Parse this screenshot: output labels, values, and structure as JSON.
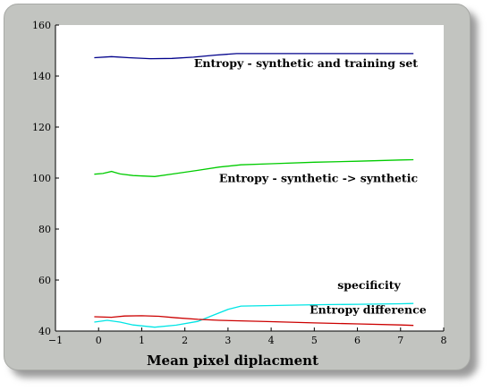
{
  "chart_data": {
    "type": "line",
    "title": "",
    "xlabel": "Mean pixel diplacment",
    "ylabel": "",
    "xlim": [
      -1,
      8
    ],
    "ylim": [
      40,
      160
    ],
    "xticks": [
      -1,
      0,
      1,
      2,
      3,
      4,
      5,
      6,
      7,
      8
    ],
    "yticks": [
      40,
      60,
      80,
      100,
      120,
      140,
      160
    ],
    "grid": false,
    "series": [
      {
        "name": "Entropy - synthetic and training set",
        "color": "#00008b",
        "x": [
          -0.1,
          0.3,
          0.7,
          1.2,
          1.7,
          2.2,
          2.7,
          3.2,
          4.0,
          5.0,
          6.0,
          7.0,
          7.3
        ],
        "y": [
          147.2,
          147.6,
          147.2,
          146.8,
          146.9,
          147.4,
          148.2,
          148.8,
          148.8,
          148.8,
          148.8,
          148.8,
          148.8
        ]
      },
      {
        "name": "Entropy - synthetic -> synthetic",
        "color": "#00cc00",
        "x": [
          -0.1,
          0.1,
          0.3,
          0.5,
          0.8,
          1.3,
          1.8,
          2.3,
          2.8,
          3.3,
          4.0,
          5.0,
          6.0,
          7.0,
          7.3
        ],
        "y": [
          101.5,
          101.8,
          102.6,
          101.6,
          101.0,
          100.6,
          101.8,
          103.0,
          104.3,
          105.2,
          105.6,
          106.2,
          106.6,
          107.1,
          107.2
        ]
      },
      {
        "name": "specificity",
        "color": "#00e5e5",
        "x": [
          -0.1,
          0.2,
          0.5,
          0.8,
          1.3,
          1.8,
          2.3,
          2.7,
          3.0,
          3.3,
          4.0,
          5.0,
          6.0,
          7.0,
          7.3
        ],
        "y": [
          43.5,
          44.2,
          43.5,
          42.4,
          41.5,
          42.3,
          43.8,
          46.5,
          48.5,
          49.8,
          50.0,
          50.3,
          50.5,
          50.7,
          50.8
        ]
      },
      {
        "name": "Entropy difference",
        "color": "#cc0000",
        "x": [
          -0.1,
          0.3,
          0.6,
          1.0,
          1.4,
          1.8,
          2.3,
          2.8,
          3.3,
          4.0,
          5.0,
          6.0,
          7.0,
          7.3
        ],
        "y": [
          45.6,
          45.4,
          45.9,
          46.0,
          45.8,
          45.2,
          44.6,
          44.2,
          44.0,
          43.7,
          43.2,
          42.8,
          42.4,
          42.2
        ]
      }
    ],
    "annotations": [
      {
        "text": "Entropy - synthetic and training set",
        "x": 7.4,
        "y": 143.5,
        "anchor": "end"
      },
      {
        "text": "Entropy - synthetic -> synthetic",
        "x": 7.4,
        "y": 98.5,
        "anchor": "end"
      },
      {
        "text": "specificity",
        "x": 7.0,
        "y": 56.5,
        "anchor": "end"
      },
      {
        "text": "Entropy difference",
        "x": 7.6,
        "y": 46.8,
        "anchor": "end"
      }
    ]
  }
}
